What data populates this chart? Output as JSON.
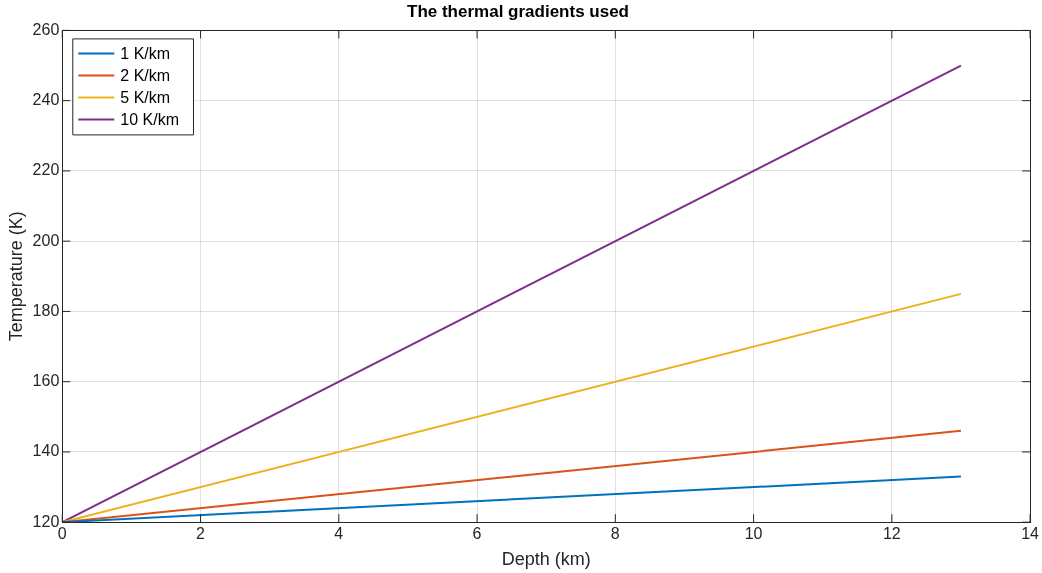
{
  "chart_data": {
    "type": "line",
    "title": "The thermal gradients used",
    "xlabel": "Depth (km)",
    "ylabel": "Temperature (K)",
    "x": [
      0,
      13
    ],
    "series": [
      {
        "name": "1 K/km",
        "color": "#0072bd",
        "values": [
          120,
          133
        ]
      },
      {
        "name": "2 K/km",
        "color": "#d95319",
        "values": [
          120,
          146
        ]
      },
      {
        "name": "5 K/km",
        "color": "#edb120",
        "values": [
          120,
          185
        ]
      },
      {
        "name": "10 K/km",
        "color": "#7e2f8e",
        "values": [
          120,
          250
        ]
      }
    ],
    "xlim": [
      0,
      14
    ],
    "xticks": [
      0,
      2,
      4,
      6,
      8,
      10,
      12,
      14
    ],
    "ylim": [
      120,
      260
    ],
    "yticks": [
      120,
      140,
      160,
      180,
      200,
      220,
      240,
      260
    ],
    "grid": true,
    "legend": "top left",
    "marker": "none",
    "line_style": "solid"
  }
}
